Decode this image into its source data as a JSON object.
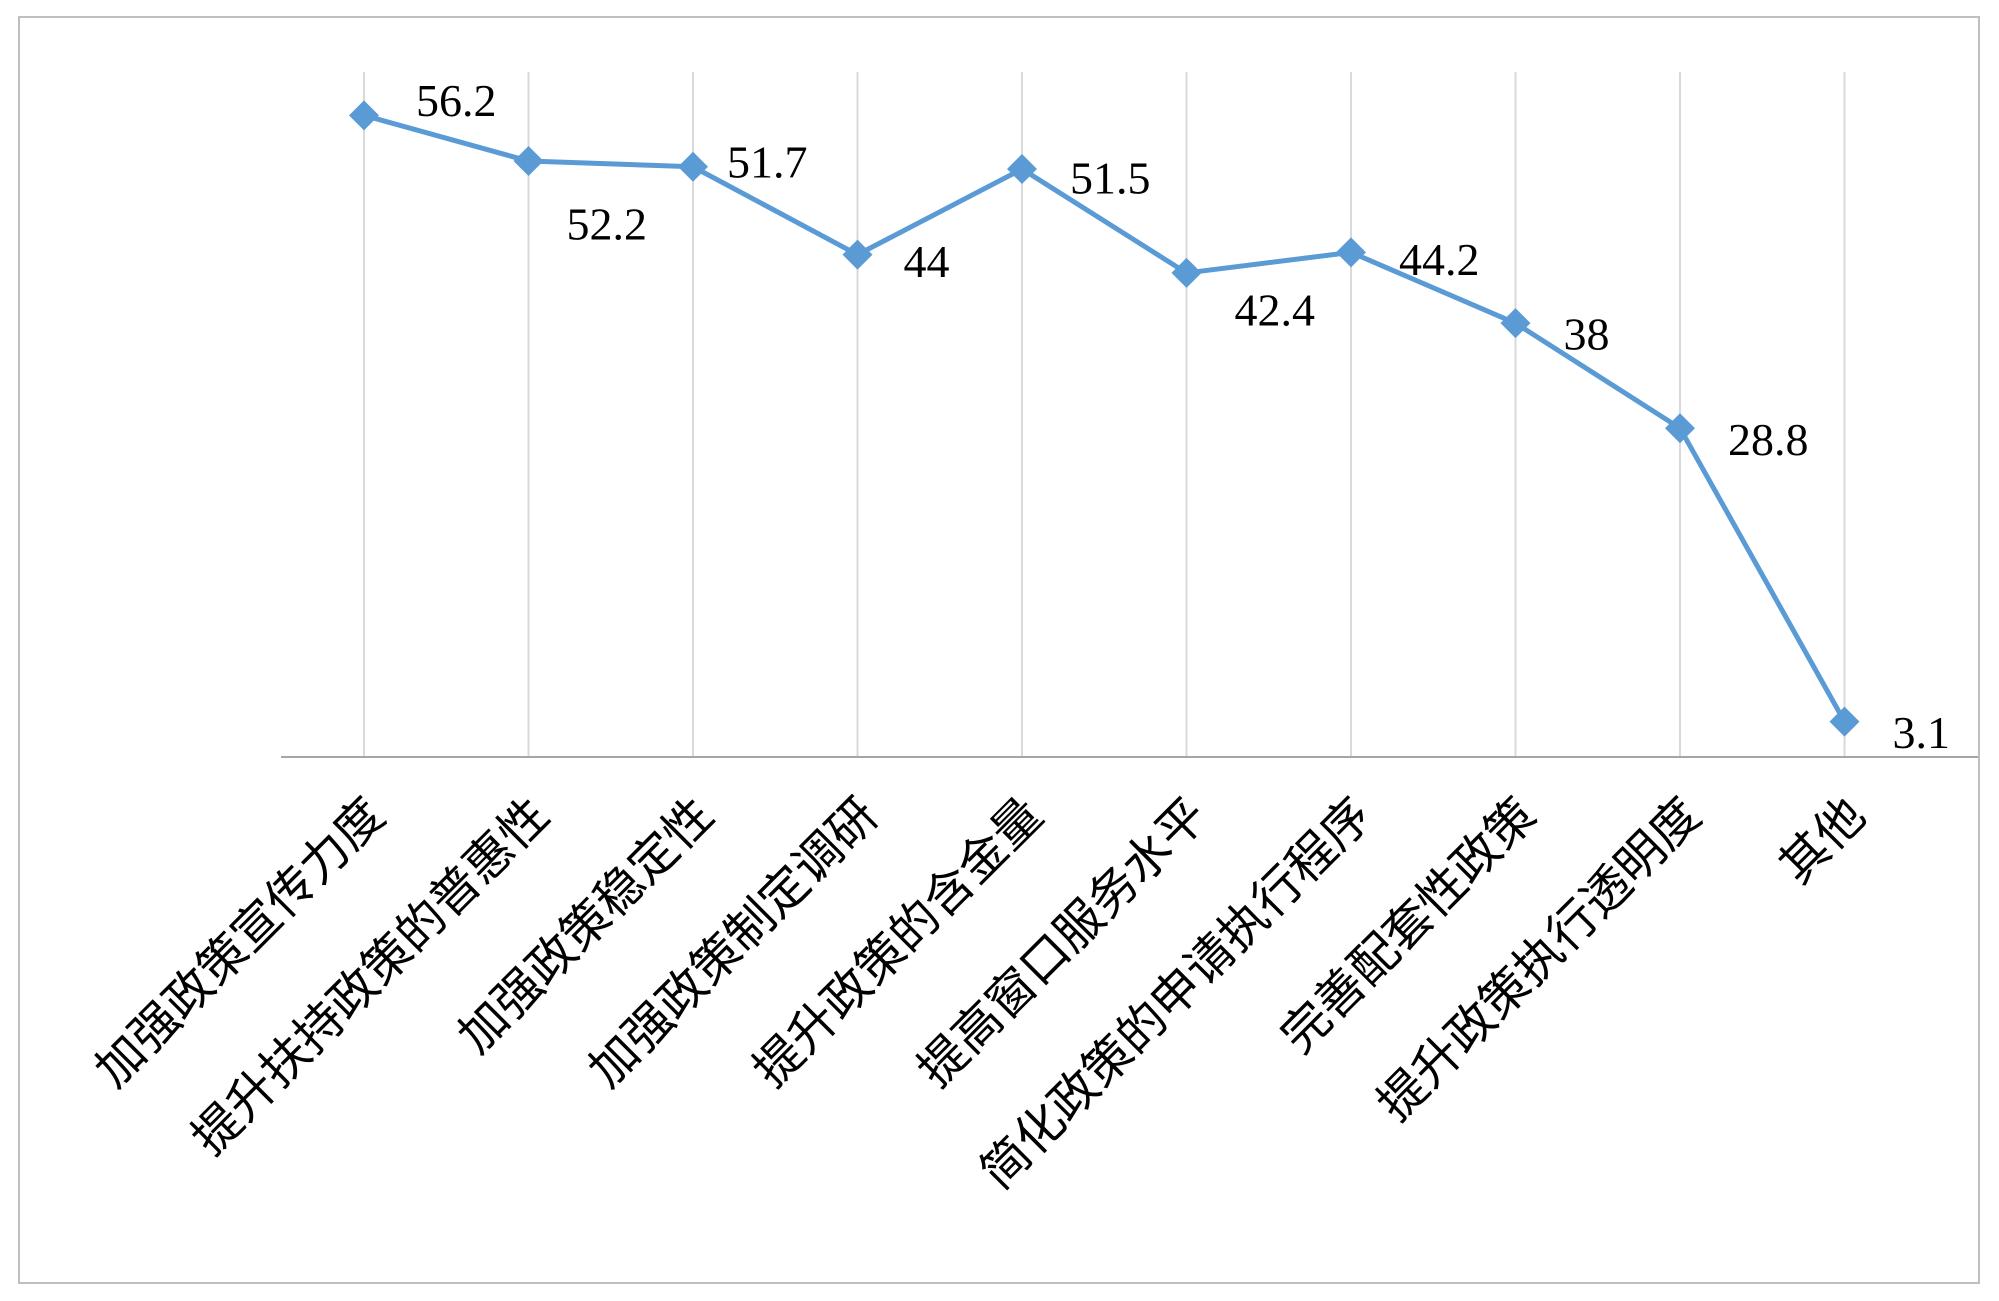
{
  "chart_data": {
    "type": "line",
    "title": "",
    "xlabel": "",
    "ylabel": "",
    "ylim": [
      0,
      60
    ],
    "grid": "vertical",
    "categories": [
      "加强政策宣传力度",
      "提升扶持政策的普惠性",
      "加强政策稳定性",
      "加强政策制定调研",
      "提升政策的含金量",
      "提高窗口服务水平",
      "简化政策的申请执行程序",
      "完善配套性政策",
      "提升政策执行透明度",
      "其他"
    ],
    "series": [
      {
        "name": "",
        "values": [
          56.2,
          52.2,
          51.7,
          44,
          51.5,
          42.4,
          44.2,
          38,
          28.8,
          3.1
        ]
      }
    ],
    "value_labels": [
      "56.2",
      "52.2",
      "51.7",
      "44",
      "51.5",
      "42.4",
      "44.2",
      "38",
      "28.8",
      "3.1"
    ],
    "line_color": "#5b9bd5",
    "grid_color": "#d9d9d9",
    "axis_color": "#a6a6a6"
  }
}
